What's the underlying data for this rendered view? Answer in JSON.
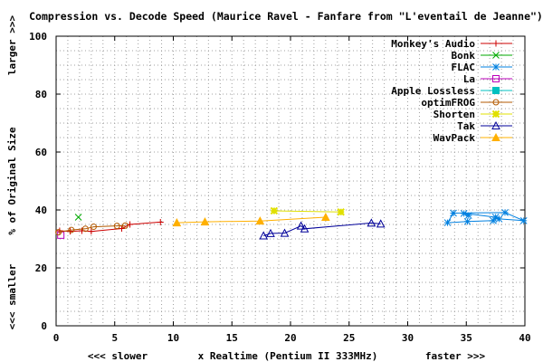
{
  "chart_data": {
    "type": "line",
    "title": "Compression vs. Decode Speed (Maurice Ravel - Fanfare from \"L'eventail de Jeanne\")",
    "xlabel": {
      "left": "<<< slower",
      "center": "x Realtime (Pentium II 333MHz)",
      "right": "faster >>>"
    },
    "ylabel": {
      "bottom": "<<< smaller",
      "center": "% of Original Size",
      "top": "larger >>>"
    },
    "xlim": [
      0,
      40
    ],
    "ylim": [
      0,
      100
    ],
    "xticks": [
      "0",
      "5",
      "10",
      "15",
      "20",
      "25",
      "30",
      "35",
      "40"
    ],
    "yticks": [
      "0",
      "20",
      "40",
      "60",
      "80",
      "100"
    ],
    "grid": true,
    "legend_position": "top-right",
    "series": [
      {
        "name": "Monkey's Audio",
        "color": "#cc0000",
        "marker": "plus",
        "x": [
          0.3,
          1.2,
          2.2,
          3.0,
          5.6,
          6.3,
          8.9
        ],
        "y": [
          32.8,
          32.6,
          32.8,
          32.6,
          33.6,
          35.0,
          35.8
        ]
      },
      {
        "name": "Bonk",
        "color": "#00aa00",
        "marker": "cross",
        "x": [
          1.9
        ],
        "y": [
          37.5
        ]
      },
      {
        "name": "FLAC",
        "color": "#0080e0",
        "marker": "star",
        "x": [
          35.2,
          34.8,
          37.5,
          37.8,
          39.9,
          38.3,
          33.9,
          33.4,
          35.1,
          37.3
        ],
        "y": [
          38.1,
          38.8,
          37.5,
          36.9,
          36.3,
          39.1,
          38.9,
          35.6,
          36.0,
          36.3
        ]
      },
      {
        "name": "La",
        "color": "#bb00bb",
        "marker": "square",
        "x": [
          0.4
        ],
        "y": [
          31.3
        ]
      },
      {
        "name": "Apple Lossless",
        "color": "#00c0c0",
        "marker": "filled-square",
        "x": [],
        "y": []
      },
      {
        "name": "optimFROG",
        "color": "#b35900",
        "marker": "circle",
        "x": [
          0.2,
          1.3,
          2.5,
          3.2,
          5.2,
          5.9
        ],
        "y": [
          32.3,
          33.1,
          33.5,
          34.2,
          34.5,
          34.6
        ]
      },
      {
        "name": "Shorten",
        "color": "#e0e000",
        "marker": "filled-star",
        "x": [
          18.6,
          24.3
        ],
        "y": [
          39.7,
          39.3
        ]
      },
      {
        "name": "Tak",
        "color": "#000099",
        "marker": "triangle",
        "x": [
          17.7,
          18.3,
          19.5,
          20.9,
          21.2,
          26.9,
          27.7
        ],
        "y": [
          31.1,
          31.9,
          32.0,
          34.5,
          33.5,
          35.5,
          35.2
        ]
      },
      {
        "name": "WavPack",
        "color": "#ffb000",
        "marker": "filled-triangle",
        "x": [
          10.3,
          12.7,
          17.4,
          23.0
        ],
        "y": [
          35.6,
          35.9,
          36.2,
          37.5
        ]
      }
    ]
  }
}
